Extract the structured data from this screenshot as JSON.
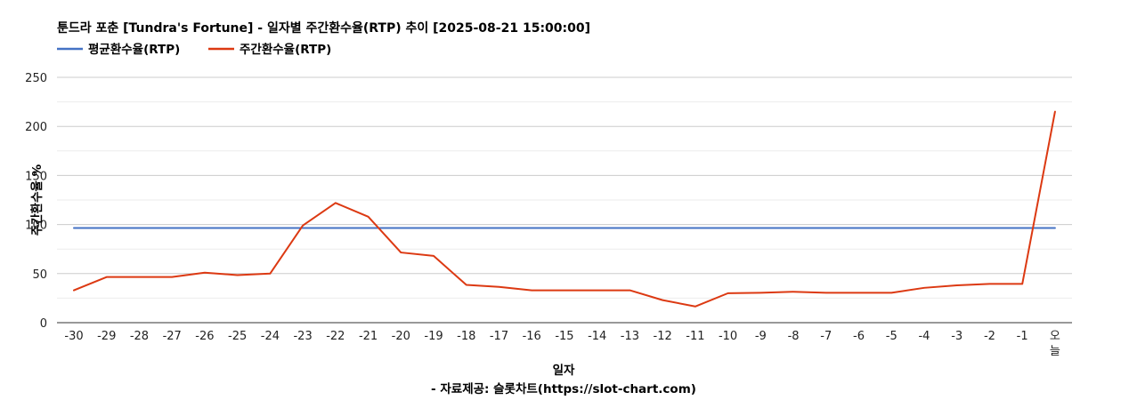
{
  "chart_data": {
    "type": "line",
    "title": "툰드라 포춘 [Tundra's Fortune] - 일자별 주간환수율(RTP) 추이 [2025-08-21 15:00:00]",
    "xlabel": "일자",
    "ylabel": "주간환수율 %",
    "source_note": "- 자료제공: 슬롯차트(https://slot-chart.com)",
    "categories": [
      "-30",
      "-29",
      "-28",
      "-27",
      "-26",
      "-25",
      "-24",
      "-23",
      "-22",
      "-21",
      "-20",
      "-19",
      "-18",
      "-17",
      "-16",
      "-15",
      "-14",
      "-13",
      "-12",
      "-11",
      "-10",
      "-9",
      "-8",
      "-7",
      "-6",
      "-5",
      "-4",
      "-3",
      "-2",
      "-1",
      "오늘"
    ],
    "ylim": [
      0,
      250
    ],
    "yticks": [
      0,
      50,
      100,
      150,
      200,
      250
    ],
    "grid": true,
    "legend_position": "top-left",
    "series": [
      {
        "name": "평균환수율(RTP)",
        "color": "#4472c4",
        "values": [
          96.5,
          96.5,
          96.5,
          96.5,
          96.5,
          96.5,
          96.5,
          96.5,
          96.5,
          96.5,
          96.5,
          96.5,
          96.5,
          96.5,
          96.5,
          96.5,
          96.5,
          96.5,
          96.5,
          96.5,
          96.5,
          96.5,
          96.5,
          96.5,
          96.5,
          96.5,
          96.5,
          96.5,
          96.5,
          96.5,
          96.5
        ]
      },
      {
        "name": "주간환수율(RTP)",
        "color": "#dc3912",
        "values": [
          33,
          46.5,
          46.5,
          46.5,
          51,
          48.5,
          50,
          99,
          122,
          108,
          71.5,
          68,
          38.5,
          36.5,
          33,
          33,
          33,
          33,
          23,
          16.5,
          30,
          30.5,
          31.5,
          30.5,
          30.5,
          30.5,
          35.5,
          38,
          39.5,
          39.5,
          215
        ]
      }
    ]
  }
}
